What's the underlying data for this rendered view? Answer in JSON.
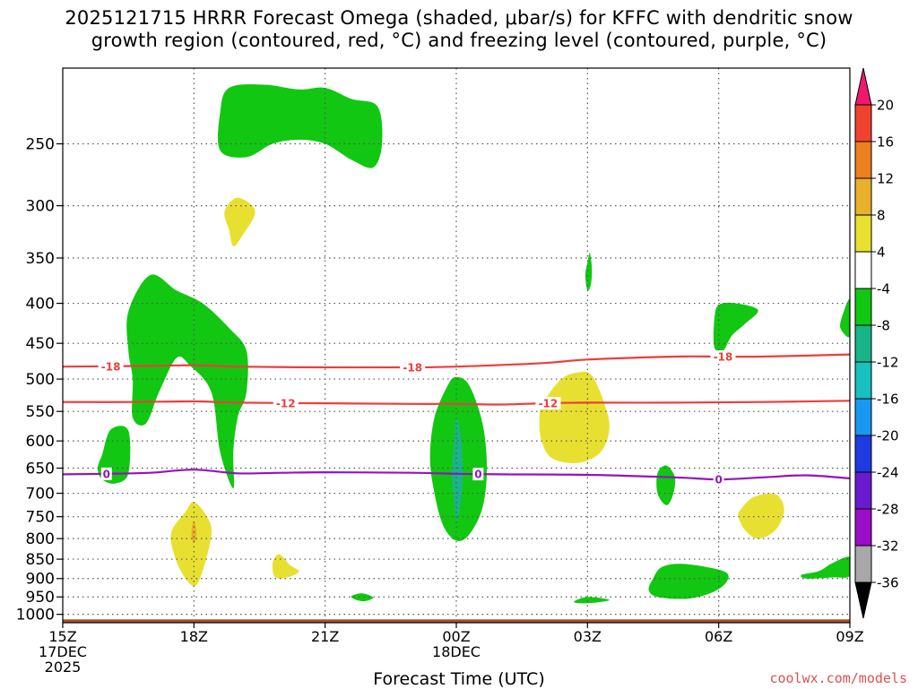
{
  "title": {
    "line1": "2025121715 HRRR Forecast Omega (shaded, μbar/s) for KFFC with dendritic snow",
    "line2": "growth region (contoured, red, °C) and freezing level (contoured, purple, °C)"
  },
  "xlabel": "Forecast Time (UTC)",
  "watermark": "coolwx.com/models",
  "chart_data": {
    "type": "time-height cross section",
    "station": "KFFC",
    "model": "HRRR",
    "init": "2025121715",
    "x_range_hours": [
      0,
      18
    ],
    "y_range_hpa": [
      1025,
      200
    ],
    "y_ticks": [
      {
        "p": 250,
        "label": "250"
      },
      {
        "p": 300,
        "label": "300"
      },
      {
        "p": 350,
        "label": "350"
      },
      {
        "p": 400,
        "label": "400"
      },
      {
        "p": 450,
        "label": "450"
      },
      {
        "p": 500,
        "label": "500"
      },
      {
        "p": 550,
        "label": "550"
      },
      {
        "p": 600,
        "label": "600"
      },
      {
        "p": 650,
        "label": "650"
      },
      {
        "p": 700,
        "label": "700"
      },
      {
        "p": 750,
        "label": "750"
      },
      {
        "p": 800,
        "label": "800"
      },
      {
        "p": 850,
        "label": "850"
      },
      {
        "p": 900,
        "label": "900"
      },
      {
        "p": 950,
        "label": "950"
      },
      {
        "p": 1000,
        "label": "1000"
      }
    ],
    "x_ticks": [
      {
        "h": 0,
        "lines": [
          "15Z",
          "17DEC",
          "2025"
        ]
      },
      {
        "h": 3,
        "lines": [
          "18Z"
        ]
      },
      {
        "h": 6,
        "lines": [
          "21Z"
        ]
      },
      {
        "h": 9,
        "lines": [
          "00Z",
          "18DEC"
        ]
      },
      {
        "h": 12,
        "lines": [
          "03Z"
        ]
      },
      {
        "h": 15,
        "lines": [
          "06Z"
        ]
      },
      {
        "h": 18,
        "lines": [
          "09Z"
        ]
      }
    ],
    "colorbar": {
      "labels": [
        "20",
        "16",
        "12",
        "8",
        "4",
        "-4",
        "-8",
        "-12",
        "-16",
        "-20",
        "-24",
        "-28",
        "-32",
        "-36"
      ],
      "colors": [
        "#f0186e",
        "#f0432e",
        "#ee7f1e",
        "#e8b02c",
        "#e8e030",
        "#ffffff",
        "#11c711",
        "#19b588",
        "#19c0c0",
        "#1898f0",
        "#1e3ae0",
        "#6a1bd0",
        "#9a0cc8",
        "#a8a8a8",
        "#000000"
      ]
    },
    "ground": {
      "color": "#a0522d",
      "top_hpa": 1015
    },
    "contours": [
      {
        "name": "-18C isotherm",
        "color": "#f03c3c",
        "label": "-18",
        "points": [
          [
            0,
            482
          ],
          [
            2,
            481
          ],
          [
            3,
            480
          ],
          [
            4,
            482
          ],
          [
            6,
            483
          ],
          [
            8,
            483
          ],
          [
            9,
            482
          ],
          [
            11,
            477
          ],
          [
            12,
            472
          ],
          [
            14,
            468
          ],
          [
            15,
            468
          ],
          [
            16,
            468
          ],
          [
            18,
            465
          ]
        ],
        "label_hours": [
          1.1,
          8.0,
          15.1
        ]
      },
      {
        "name": "-12C isotherm",
        "color": "#f03c3c",
        "label": "-12",
        "points": [
          [
            0,
            535
          ],
          [
            1.5,
            535
          ],
          [
            3,
            534
          ],
          [
            4,
            536
          ],
          [
            6,
            537
          ],
          [
            8,
            538
          ],
          [
            9,
            538
          ],
          [
            10,
            539
          ],
          [
            11,
            537
          ],
          [
            12,
            536
          ],
          [
            14,
            536
          ],
          [
            16,
            535
          ],
          [
            18,
            533
          ]
        ],
        "label_hours": [
          5.1,
          11.1
        ]
      },
      {
        "name": "0C freezing level",
        "color": "#9512c0",
        "label": "0",
        "points": [
          [
            0,
            662
          ],
          [
            1,
            661
          ],
          [
            2,
            659
          ],
          [
            3,
            653
          ],
          [
            4,
            660
          ],
          [
            5,
            659
          ],
          [
            6,
            658
          ],
          [
            8,
            659
          ],
          [
            9,
            661
          ],
          [
            10,
            662
          ],
          [
            12,
            663
          ],
          [
            14,
            668
          ],
          [
            15,
            672
          ],
          [
            16,
            668
          ],
          [
            17,
            664
          ],
          [
            18,
            670
          ]
        ],
        "label_hours": [
          1.0,
          9.5,
          15.0
        ]
      }
    ],
    "shaded": [
      {
        "value_band": "-8 to -4",
        "color": "#11c711",
        "name": "upper-ascent-250",
        "poly": [
          [
            3.6,
            228
          ],
          [
            3.8,
            212
          ],
          [
            4.6,
            210
          ],
          [
            5.4,
            213
          ],
          [
            6.0,
            212
          ],
          [
            6.6,
            219
          ],
          [
            7.2,
            224
          ],
          [
            7.3,
            250
          ],
          [
            7.1,
            268
          ],
          [
            6.6,
            262
          ],
          [
            6.0,
            250
          ],
          [
            5.4,
            247
          ],
          [
            4.8,
            250
          ],
          [
            4.2,
            260
          ],
          [
            3.6,
            255
          ]
        ]
      },
      {
        "value_band": "-8 to -4",
        "color": "#11c711",
        "name": "mid-ascent-400",
        "poly": [
          [
            1.5,
            410
          ],
          [
            2.0,
            368
          ],
          [
            2.6,
            385
          ],
          [
            3.2,
            400
          ],
          [
            3.8,
            430
          ],
          [
            4.2,
            460
          ],
          [
            4.2,
            520
          ],
          [
            4.0,
            560
          ],
          [
            3.9,
            620
          ],
          [
            3.9,
            690
          ],
          [
            3.6,
            620
          ],
          [
            3.4,
            520
          ],
          [
            2.9,
            480
          ],
          [
            2.6,
            470
          ],
          [
            2.2,
            520
          ],
          [
            1.9,
            570
          ],
          [
            1.6,
            560
          ],
          [
            1.6,
            500
          ],
          [
            1.5,
            460
          ]
        ]
      },
      {
        "value_band": "-8 to -4",
        "color": "#11c711",
        "name": "low-ascent-630",
        "poly": [
          [
            0.9,
            625
          ],
          [
            1.1,
            580
          ],
          [
            1.5,
            582
          ],
          [
            1.5,
            660
          ],
          [
            1.2,
            680
          ],
          [
            0.9,
            672
          ],
          [
            0.8,
            650
          ]
        ]
      },
      {
        "value_band": "-8 to -4",
        "color": "#11c711",
        "name": "main-ascent-00z",
        "poly": [
          [
            8.5,
            560
          ],
          [
            8.8,
            510
          ],
          [
            9.0,
            497
          ],
          [
            9.3,
            510
          ],
          [
            9.6,
            570
          ],
          [
            9.7,
            650
          ],
          [
            9.6,
            730
          ],
          [
            9.3,
            790
          ],
          [
            9.0,
            805
          ],
          [
            8.7,
            770
          ],
          [
            8.5,
            700
          ],
          [
            8.4,
            630
          ]
        ]
      },
      {
        "value_band": "-12 to -8",
        "color": "#19b588",
        "name": "core-00z",
        "poly": [
          [
            8.95,
            600
          ],
          [
            9.0,
            560
          ],
          [
            9.1,
            590
          ],
          [
            9.15,
            660
          ],
          [
            9.1,
            720
          ],
          [
            9.0,
            760
          ],
          [
            8.95,
            720
          ],
          [
            8.9,
            660
          ]
        ]
      },
      {
        "value_band": "-8 to -4",
        "color": "#11c711",
        "name": "thin-03z",
        "poly": [
          [
            12.0,
            355
          ],
          [
            12.05,
            345
          ],
          [
            12.1,
            360
          ],
          [
            12.08,
            378
          ],
          [
            12.0,
            385
          ],
          [
            11.95,
            368
          ]
        ]
      },
      {
        "value_band": "-8 to -4",
        "color": "#11c711",
        "name": "upper-06z",
        "poly": [
          [
            14.9,
            420
          ],
          [
            15.0,
            402
          ],
          [
            15.4,
            400
          ],
          [
            15.9,
            408
          ],
          [
            15.6,
            425
          ],
          [
            15.3,
            440
          ],
          [
            15.1,
            460
          ],
          [
            14.9,
            455
          ]
        ]
      },
      {
        "value_band": "-8 to -4",
        "color": "#11c711",
        "name": "edge-09z",
        "poly": [
          [
            17.8,
            420
          ],
          [
            18.0,
            395
          ],
          [
            18.0,
            440
          ],
          [
            17.8,
            432
          ]
        ]
      },
      {
        "value_band": "-8 to -4",
        "color": "#11c711",
        "name": "low-05z",
        "poly": [
          [
            13.6,
            660
          ],
          [
            13.8,
            645
          ],
          [
            14.0,
            668
          ],
          [
            13.95,
            705
          ],
          [
            13.8,
            725
          ],
          [
            13.6,
            700
          ]
        ]
      },
      {
        "value_band": "-8 to -4",
        "color": "#11c711",
        "name": "low-05z-boundary",
        "poly": [
          [
            13.5,
            900
          ],
          [
            13.7,
            870
          ],
          [
            14.2,
            862
          ],
          [
            15.1,
            880
          ],
          [
            15.2,
            905
          ],
          [
            14.9,
            935
          ],
          [
            14.3,
            955
          ],
          [
            13.6,
            950
          ],
          [
            13.4,
            930
          ]
        ]
      },
      {
        "value_band": "-8 to -4",
        "color": "#11c711",
        "name": "low-08z-boundary",
        "poly": [
          [
            17.3,
            880
          ],
          [
            17.6,
            860
          ],
          [
            18.0,
            845
          ],
          [
            18.0,
            893
          ],
          [
            17.6,
            897
          ],
          [
            17.0,
            900
          ],
          [
            16.9,
            890
          ]
        ]
      },
      {
        "value_band": "-8 to -4",
        "color": "#11c711",
        "name": "small-22z",
        "poly": [
          [
            6.6,
            948
          ],
          [
            6.85,
            940
          ],
          [
            7.1,
            952
          ],
          [
            6.9,
            962
          ],
          [
            6.7,
            958
          ]
        ]
      },
      {
        "value_band": "-8 to -4",
        "color": "#11c711",
        "name": "small-03z",
        "poly": [
          [
            11.7,
            962
          ],
          [
            12.0,
            950
          ],
          [
            12.5,
            958
          ],
          [
            12.2,
            966
          ],
          [
            11.8,
            968
          ]
        ]
      },
      {
        "value_band": "4 to 8",
        "color": "#e8e030",
        "name": "descent-300",
        "poly": [
          [
            3.7,
            305
          ],
          [
            4.0,
            293
          ],
          [
            4.4,
            305
          ],
          [
            4.1,
            328
          ],
          [
            3.9,
            338
          ],
          [
            3.8,
            322
          ]
        ]
      },
      {
        "value_band": "4 to 8",
        "color": "#e8e030",
        "name": "descent-02z",
        "poly": [
          [
            11.0,
            535
          ],
          [
            11.4,
            500
          ],
          [
            11.8,
            490
          ],
          [
            12.1,
            495
          ],
          [
            12.4,
            540
          ],
          [
            12.5,
            580
          ],
          [
            12.3,
            620
          ],
          [
            11.8,
            640
          ],
          [
            11.2,
            632
          ],
          [
            10.95,
            600
          ],
          [
            10.9,
            560
          ]
        ]
      },
      {
        "value_band": "4 to 8",
        "color": "#e8e030",
        "name": "descent-07z",
        "poly": [
          [
            15.5,
            735
          ],
          [
            15.8,
            708
          ],
          [
            16.3,
            702
          ],
          [
            16.5,
            735
          ],
          [
            16.3,
            780
          ],
          [
            15.9,
            800
          ],
          [
            15.6,
            780
          ],
          [
            15.45,
            750
          ]
        ]
      },
      {
        "value_band": "4 to 8",
        "color": "#e8e030",
        "name": "descent-18z-low",
        "poly": [
          [
            2.5,
            780
          ],
          [
            2.8,
            740
          ],
          [
            3.0,
            718
          ],
          [
            3.3,
            750
          ],
          [
            3.4,
            790
          ],
          [
            3.2,
            880
          ],
          [
            3.0,
            920
          ],
          [
            2.7,
            880
          ],
          [
            2.5,
            820
          ]
        ]
      },
      {
        "value_band": "8 to 12",
        "color": "#e8b02c",
        "name": "descent-18z-core",
        "poly": [
          [
            2.95,
            775
          ],
          [
            3.0,
            760
          ],
          [
            3.05,
            775
          ],
          [
            3.05,
            800
          ],
          [
            3.0,
            810
          ],
          [
            2.95,
            800
          ]
        ]
      },
      {
        "value_band": "4 to 8",
        "color": "#e8e030",
        "name": "descent-20z",
        "poly": [
          [
            4.8,
            860
          ],
          [
            4.95,
            838
          ],
          [
            5.2,
            865
          ],
          [
            5.4,
            882
          ],
          [
            5.1,
            898
          ],
          [
            4.85,
            895
          ]
        ]
      }
    ]
  }
}
